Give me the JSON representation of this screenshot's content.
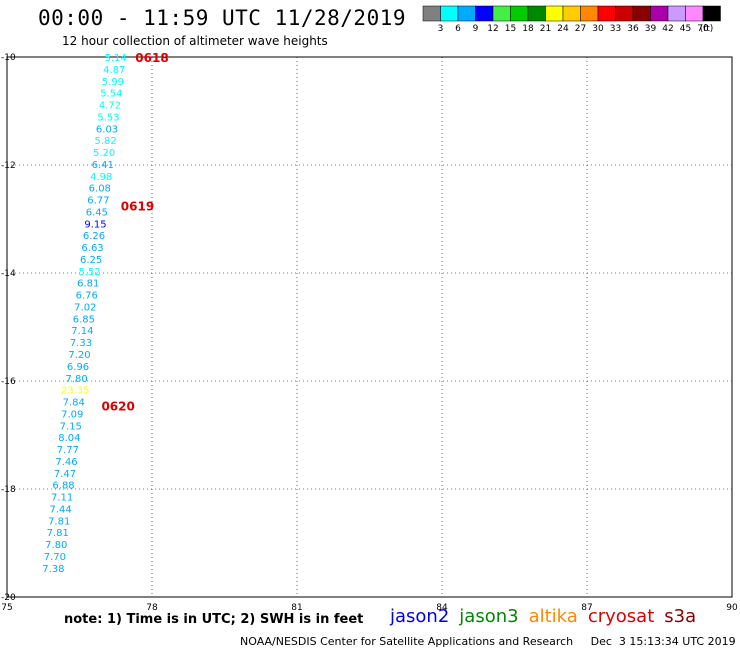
{
  "header": {
    "title": "00:00 - 11:59 UTC 11/28/2019",
    "subtitle": "12 hour collection of altimeter wave heights"
  },
  "colorbar": {
    "unit": "(ft)",
    "bins": [
      {
        "label": "3",
        "color": "#808080"
      },
      {
        "label": "6",
        "color": "#00ffff"
      },
      {
        "label": "9",
        "color": "#00aaff"
      },
      {
        "label": "12",
        "color": "#0000ff"
      },
      {
        "label": "15",
        "color": "#44ee44"
      },
      {
        "label": "18",
        "color": "#00cc00"
      },
      {
        "label": "21",
        "color": "#008800"
      },
      {
        "label": "24",
        "color": "#ffff00"
      },
      {
        "label": "27",
        "color": "#ffcc00"
      },
      {
        "label": "30",
        "color": "#ff8800"
      },
      {
        "label": "33",
        "color": "#ff0000"
      },
      {
        "label": "36",
        "color": "#cc0000"
      },
      {
        "label": "39",
        "color": "#880000"
      },
      {
        "label": "42",
        "color": "#aa00aa"
      },
      {
        "label": "45",
        "color": "#cc99ff"
      },
      {
        "label": "70",
        "color": "#ff88ff"
      },
      {
        "label": "",
        "color": "#000000"
      }
    ]
  },
  "map": {
    "lon_ticks": [
      "75",
      "78",
      "81",
      "84",
      "87",
      "90"
    ],
    "lat_ticks": [
      "-10",
      "-12",
      "-14",
      "-16",
      "-18",
      "-20"
    ],
    "lon_range": [
      75,
      90
    ],
    "lat_range": [
      -20,
      -10
    ],
    "grid": true
  },
  "chart_data": {
    "type": "scatter",
    "x_axis": "longitude (E)",
    "y_axis": "latitude",
    "xlim": [
      75,
      90
    ],
    "ylim": [
      -20,
      -10
    ],
    "time_labels": [
      {
        "text": "0618",
        "lon": 78.0,
        "lat": -10.0
      },
      {
        "text": "0619",
        "lon": 77.7,
        "lat": -12.75
      },
      {
        "text": "0620",
        "lon": 77.3,
        "lat": -16.45
      }
    ],
    "points": [
      {
        "value": "5.14",
        "lon": 77.25,
        "lat": -10.0
      },
      {
        "value": "4.87",
        "lon": 77.22,
        "lat": -10.22
      },
      {
        "value": "5.99",
        "lon": 77.19,
        "lat": -10.44
      },
      {
        "value": "5.54",
        "lon": 77.16,
        "lat": -10.66
      },
      {
        "value": "4.72",
        "lon": 77.13,
        "lat": -10.88
      },
      {
        "value": "5.53",
        "lon": 77.1,
        "lat": -11.1
      },
      {
        "value": "6.03",
        "lon": 77.07,
        "lat": -11.32
      },
      {
        "value": "5.82",
        "lon": 77.04,
        "lat": -11.54
      },
      {
        "value": "5.20",
        "lon": 77.01,
        "lat": -11.76
      },
      {
        "value": "6.41",
        "lon": 76.98,
        "lat": -11.98
      },
      {
        "value": "4.98",
        "lon": 76.95,
        "lat": -12.2
      },
      {
        "value": "6.08",
        "lon": 76.92,
        "lat": -12.42
      },
      {
        "value": "6.77",
        "lon": 76.89,
        "lat": -12.64
      },
      {
        "value": "6.45",
        "lon": 76.86,
        "lat": -12.86
      },
      {
        "value": "9.15",
        "lon": 76.83,
        "lat": -13.08
      },
      {
        "value": "6.26",
        "lon": 76.8,
        "lat": -13.3
      },
      {
        "value": "6.63",
        "lon": 76.77,
        "lat": -13.52
      },
      {
        "value": "6.25",
        "lon": 76.74,
        "lat": -13.74
      },
      {
        "value": "5.52",
        "lon": 76.71,
        "lat": -13.96
      },
      {
        "value": "6.81",
        "lon": 76.68,
        "lat": -14.18
      },
      {
        "value": "6.76",
        "lon": 76.65,
        "lat": -14.4
      },
      {
        "value": "7.02",
        "lon": 76.62,
        "lat": -14.62
      },
      {
        "value": "6.85",
        "lon": 76.59,
        "lat": -14.84
      },
      {
        "value": "7.14",
        "lon": 76.56,
        "lat": -15.06
      },
      {
        "value": "7.33",
        "lon": 76.53,
        "lat": -15.28
      },
      {
        "value": "7.20",
        "lon": 76.5,
        "lat": -15.5
      },
      {
        "value": "6.96",
        "lon": 76.47,
        "lat": -15.72
      },
      {
        "value": "7.80",
        "lon": 76.44,
        "lat": -15.94
      },
      {
        "value": "23.35",
        "lon": 76.41,
        "lat": -16.16
      },
      {
        "value": "7.84",
        "lon": 76.38,
        "lat": -16.38
      },
      {
        "value": "7.09",
        "lon": 76.35,
        "lat": -16.6
      },
      {
        "value": "7.15",
        "lon": 76.32,
        "lat": -16.82
      },
      {
        "value": "8.04",
        "lon": 76.29,
        "lat": -17.04
      },
      {
        "value": "7.77",
        "lon": 76.26,
        "lat": -17.26
      },
      {
        "value": "7.46",
        "lon": 76.23,
        "lat": -17.48
      },
      {
        "value": "7.47",
        "lon": 76.2,
        "lat": -17.7
      },
      {
        "value": "6.88",
        "lon": 76.17,
        "lat": -17.92
      },
      {
        "value": "7.11",
        "lon": 76.14,
        "lat": -18.14
      },
      {
        "value": "7.44",
        "lon": 76.11,
        "lat": -18.36
      },
      {
        "value": "7.81",
        "lon": 76.08,
        "lat": -18.58
      },
      {
        "value": "7.81",
        "lon": 76.05,
        "lat": -18.8
      },
      {
        "value": "7.80",
        "lon": 76.02,
        "lat": -19.02
      },
      {
        "value": "7.70",
        "lon": 75.99,
        "lat": -19.24
      },
      {
        "value": "7.38",
        "lon": 75.96,
        "lat": -19.46
      }
    ]
  },
  "footer": {
    "note": "note:  1) Time is in UTC;  2) SWH is in feet",
    "satellites": [
      {
        "name": "jason2",
        "color": "#0000ee"
      },
      {
        "name": "jason3",
        "color": "#008800"
      },
      {
        "name": "altika",
        "color": "#ff8800"
      },
      {
        "name": "cryosat",
        "color": "#dd0000"
      },
      {
        "name": "s3a",
        "color": "#880000"
      }
    ],
    "credit": "NOAA/NESDIS Center for Satellite Applications and Research     Dec  3 15:13:34 UTC 2019"
  }
}
